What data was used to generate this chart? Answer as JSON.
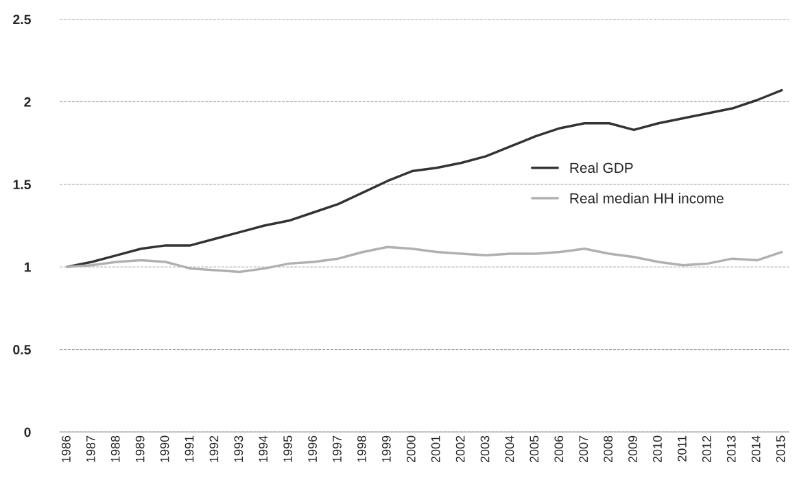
{
  "chart_data": {
    "type": "line",
    "categories": [
      "1986",
      "1987",
      "1988",
      "1989",
      "1990",
      "1991",
      "1992",
      "1993",
      "1994",
      "1995",
      "1996",
      "1997",
      "1998",
      "1999",
      "2000",
      "2001",
      "2002",
      "2003",
      "2004",
      "2005",
      "2006",
      "2007",
      "2008",
      "2009",
      "2010",
      "2011",
      "2012",
      "2013",
      "2014",
      "2015"
    ],
    "series": [
      {
        "name": "Real GDP",
        "color": "#333333",
        "values": [
          1.0,
          1.03,
          1.07,
          1.11,
          1.13,
          1.13,
          1.17,
          1.21,
          1.25,
          1.28,
          1.33,
          1.38,
          1.45,
          1.52,
          1.58,
          1.6,
          1.63,
          1.67,
          1.73,
          1.79,
          1.84,
          1.87,
          1.87,
          1.83,
          1.87,
          1.9,
          1.93,
          1.96,
          2.01,
          2.07
        ]
      },
      {
        "name": "Real median HH income",
        "color": "#b0b0b0",
        "values": [
          1.0,
          1.01,
          1.03,
          1.04,
          1.03,
          0.99,
          0.98,
          0.97,
          0.99,
          1.02,
          1.03,
          1.05,
          1.09,
          1.12,
          1.11,
          1.09,
          1.08,
          1.07,
          1.08,
          1.08,
          1.09,
          1.11,
          1.08,
          1.06,
          1.03,
          1.01,
          1.02,
          1.05,
          1.04,
          1.09
        ]
      }
    ],
    "ylim": [
      0,
      2.5
    ],
    "yticks": [
      0,
      0.5,
      1,
      1.5,
      2,
      2.5
    ],
    "grid": "y",
    "legend": "right",
    "marker": "none",
    "line_style": "solid"
  }
}
